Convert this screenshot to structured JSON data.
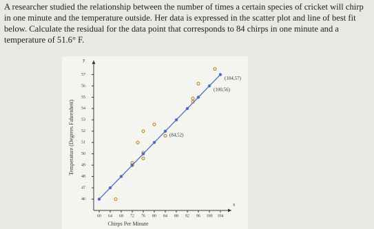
{
  "question": "A researcher studied the relationship between the number of times a certain species of cricket will chirp in one minute and the temperature outside. Her data is expressed in the scatter plot and line of best fit below. Calculate the residual for the data point that corresponds to 84 chirps in one minute and a temperature of 51.6° F.",
  "chart_data": {
    "type": "scatter",
    "x_label": "Chirps Per Minute",
    "y_label": "Temperature (Degrees Fahrenheit)",
    "x_axis_letter": "x",
    "y_axis_letter": "y",
    "xlim": [
      58,
      106
    ],
    "ylim": [
      45,
      58
    ],
    "xticks": [
      60,
      64,
      68,
      72,
      76,
      80,
      84,
      88,
      92,
      96,
      100,
      104
    ],
    "yticks": [
      46,
      47,
      48,
      49,
      50,
      51,
      52,
      53,
      54,
      55,
      56,
      57
    ],
    "series": [
      {
        "color": "#c98a2e",
        "x": [
          66,
          72,
          72,
          74,
          76,
          76,
          76,
          80,
          84,
          94,
          94,
          96,
          102
        ],
        "values": [
          46,
          49,
          49.2,
          51,
          49.6,
          50.1,
          52,
          52.6,
          51.6,
          54.6,
          54.9,
          56.2,
          57.5
        ]
      },
      {
        "type": "line",
        "color": "#4a6fc0",
        "x": [
          60,
          64,
          68,
          72,
          76,
          80,
          84,
          88,
          92,
          96,
          100,
          104
        ],
        "values": [
          46,
          47,
          48,
          49,
          50,
          51,
          52,
          53,
          54,
          55,
          56,
          57
        ]
      }
    ],
    "annotations": [
      {
        "text": "(104,57)",
        "x": 104,
        "y": 57
      },
      {
        "text": "(100,56)",
        "x": 100,
        "y": 56
      },
      {
        "text": "(84,52)",
        "x": 84,
        "y": 52
      }
    ]
  }
}
